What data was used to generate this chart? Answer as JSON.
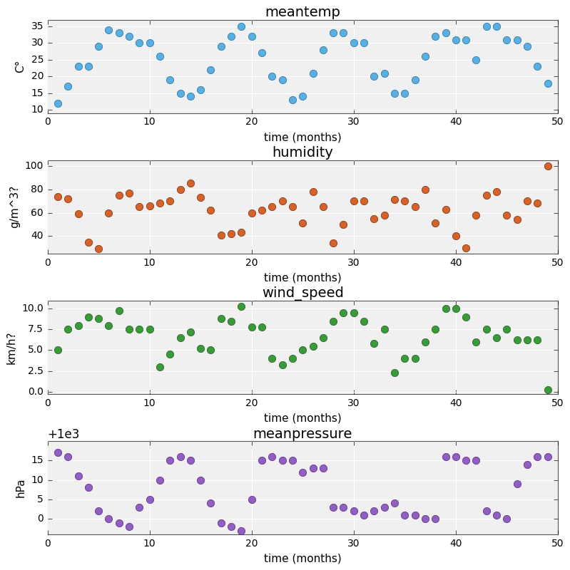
{
  "meantemp": {
    "title": "meantemp",
    "ylabel": "C°",
    "xlabel": "time (months)",
    "color": "#5aafe0",
    "edgecolor": "#1a6fa0",
    "x": [
      1,
      2,
      3,
      4,
      5,
      6,
      7,
      8,
      9,
      10,
      11,
      12,
      13,
      14,
      15,
      16,
      17,
      18,
      19,
      20,
      21,
      22,
      23,
      24,
      25,
      26,
      27,
      28,
      29,
      30,
      31,
      32,
      33,
      34,
      35,
      36,
      37,
      38,
      39,
      40,
      41,
      42,
      43,
      44,
      45,
      46,
      47,
      48,
      49
    ],
    "y": [
      12,
      17,
      23,
      23,
      29,
      34,
      33,
      32,
      30,
      30,
      26,
      19,
      15,
      14,
      16,
      22,
      29,
      32,
      35,
      32,
      27,
      20,
      19,
      13,
      14,
      21,
      28,
      33,
      33,
      30,
      30,
      20,
      21,
      15,
      15,
      19,
      26,
      32,
      33,
      31,
      31,
      25,
      35,
      35,
      31,
      31,
      29,
      23,
      18
    ],
    "ylim": [
      9,
      37
    ],
    "yticks": [
      10,
      15,
      20,
      25,
      30,
      35
    ],
    "xlim": [
      0,
      50
    ]
  },
  "humidity": {
    "title": "humidity",
    "ylabel": "g/m^3?",
    "xlabel": "time (months)",
    "color": "#d4622a",
    "edgecolor": "#7a2a00",
    "x": [
      1,
      2,
      3,
      4,
      5,
      6,
      7,
      8,
      9,
      10,
      11,
      12,
      13,
      14,
      15,
      16,
      17,
      18,
      19,
      20,
      21,
      22,
      23,
      24,
      25,
      26,
      27,
      28,
      29,
      30,
      31,
      32,
      33,
      34,
      35,
      36,
      37,
      38,
      39,
      40,
      41,
      42,
      43,
      44,
      45,
      46,
      47,
      48,
      49
    ],
    "y": [
      74,
      72,
      59,
      35,
      29,
      60,
      75,
      77,
      65,
      66,
      68,
      70,
      80,
      85,
      73,
      62,
      41,
      42,
      43,
      60,
      62,
      65,
      70,
      65,
      51,
      78,
      65,
      34,
      50,
      70,
      70,
      55,
      58,
      71,
      70,
      65,
      80,
      51,
      63,
      40,
      30,
      58,
      75,
      78,
      58,
      54,
      70,
      68,
      100
    ],
    "ylim": [
      25,
      105
    ],
    "yticks": [
      40,
      60,
      80,
      100
    ],
    "xlim": [
      0,
      50
    ]
  },
  "wind_speed": {
    "title": "wind_speed",
    "ylabel": "km/h?",
    "xlabel": "time (months)",
    "color": "#3a9a3a",
    "edgecolor": "#1a5a1a",
    "x": [
      1,
      2,
      3,
      4,
      5,
      6,
      7,
      8,
      9,
      10,
      11,
      12,
      13,
      14,
      15,
      16,
      17,
      18,
      19,
      20,
      21,
      22,
      23,
      24,
      25,
      26,
      27,
      28,
      29,
      30,
      31,
      32,
      33,
      34,
      35,
      36,
      37,
      38,
      39,
      40,
      41,
      42,
      43,
      44,
      45,
      46,
      47,
      48,
      49
    ],
    "y": [
      5.0,
      7.5,
      8.0,
      9.0,
      8.8,
      8.0,
      9.8,
      7.5,
      7.5,
      7.5,
      3.0,
      4.5,
      6.5,
      7.2,
      5.2,
      5.0,
      8.8,
      8.5,
      10.3,
      7.8,
      7.8,
      4.0,
      3.2,
      4.0,
      5.0,
      5.5,
      6.5,
      8.5,
      9.5,
      9.5,
      8.5,
      5.8,
      7.5,
      2.3,
      4.0,
      4.0,
      6.0,
      7.5,
      10.0,
      10.0,
      9.0,
      6.0,
      7.5,
      6.5,
      7.5,
      6.2,
      6.2,
      6.2,
      0.2
    ],
    "ylim": [
      -0.3,
      11
    ],
    "yticks": [
      0.0,
      2.5,
      5.0,
      7.5,
      10.0
    ],
    "xlim": [
      0,
      50
    ]
  },
  "meanpressure": {
    "title": "meanpressure",
    "ylabel": "hPa",
    "xlabel": "time (months)",
    "color": "#9060c0",
    "edgecolor": "#5a2090",
    "x": [
      1,
      2,
      3,
      4,
      5,
      6,
      7,
      8,
      9,
      10,
      11,
      12,
      13,
      14,
      15,
      16,
      17,
      18,
      19,
      20,
      21,
      22,
      23,
      24,
      25,
      26,
      27,
      28,
      29,
      30,
      31,
      32,
      33,
      34,
      35,
      36,
      37,
      38,
      39,
      40,
      41,
      42,
      43,
      44,
      45,
      46,
      47,
      48,
      49
    ],
    "y": [
      1017,
      1016,
      1011,
      1008,
      1002,
      1000,
      999,
      998,
      1003,
      1005,
      1010,
      1015,
      1016,
      1015,
      1010,
      1004,
      999,
      998,
      997,
      1005,
      1015,
      1016,
      1015,
      1015,
      1012,
      1013,
      1013,
      1003,
      1003,
      1002,
      1001,
      1002,
      1003,
      1004,
      1001,
      1001,
      1000,
      1000,
      1016,
      1016,
      1015,
      1015,
      1002,
      1001,
      1000,
      1009,
      1014,
      1016,
      1016
    ],
    "ylim": [
      996,
      1020
    ],
    "yticks": [
      1000,
      1005,
      1010,
      1015
    ],
    "xlim": [
      0,
      50
    ]
  },
  "marker_size": 55,
  "title_fontsize": 14,
  "label_fontsize": 11,
  "tick_fontsize": 10,
  "bg_color": "#f0f0f0",
  "grid_color": "#ffffff",
  "spine_color": "#555555"
}
